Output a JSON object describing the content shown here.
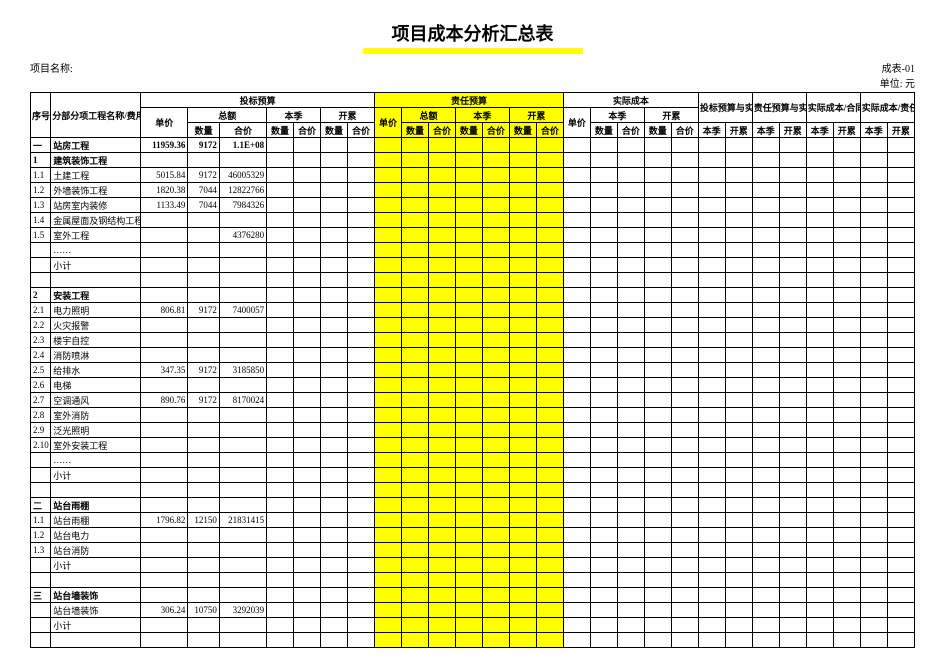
{
  "title": "项目成本分析汇总表",
  "sheet_code": "成表-01",
  "project_label": "项目名称:",
  "unit_label": "单位: 元",
  "colors": {
    "highlight": "#ffff00",
    "border": "#000000",
    "bg": "#ffffff"
  },
  "header": {
    "xh": "序号",
    "name": "分部分项工程名称/费用名称",
    "g1": "投标预算",
    "g2": "责任预算",
    "g3": "实际成本",
    "g4": "投标预算与实际成本差额",
    "g5": "责任预算与实际成本差额",
    "g6": "实际成本/合同收入 节超率（%）",
    "g7": "实际成本/责任预算 节超率（%）",
    "dj": "单价",
    "zj": "总额",
    "bj": "本季",
    "kl": "开累",
    "sl": "数量",
    "hj": "合价"
  },
  "rows": [
    {
      "xh": "一",
      "name": "站房工程",
      "dj": "11959.36",
      "sl": "9172",
      "hj": "1.1E+08",
      "bold": true
    },
    {
      "xh": "1",
      "name": "建筑装饰工程",
      "bold": true
    },
    {
      "xh": "1.1",
      "name": "土建工程",
      "dj": "5015.84",
      "sl": "9172",
      "hj": "46005329"
    },
    {
      "xh": "1.2",
      "name": "外墙装饰工程",
      "dj": "1820.38",
      "sl": "7044",
      "hj": "12822766"
    },
    {
      "xh": "1.3",
      "name": "站房室内装修",
      "dj": "1133.49",
      "sl": "7044",
      "hj": "7984326"
    },
    {
      "xh": "1.4",
      "name": "金属屋面及钢结构工程"
    },
    {
      "xh": "1.5",
      "name": "室外工程",
      "hj": "4376280"
    },
    {
      "xh": "",
      "name": "……"
    },
    {
      "xh": "",
      "name": "小计"
    },
    {
      "xh": "",
      "name": ""
    },
    {
      "xh": "2",
      "name": "安装工程",
      "bold": true
    },
    {
      "xh": "2.1",
      "name": "电力照明",
      "dj": "806.81",
      "sl": "9172",
      "hj": "7400057"
    },
    {
      "xh": "2.2",
      "name": "火灾报警"
    },
    {
      "xh": "2.3",
      "name": "楼宇自控"
    },
    {
      "xh": "2.4",
      "name": "消防喷淋"
    },
    {
      "xh": "2.5",
      "name": "给排水",
      "dj": "347.35",
      "sl": "9172",
      "hj": "3185850"
    },
    {
      "xh": "2.6",
      "name": "电梯"
    },
    {
      "xh": "2.7",
      "name": "空调通风",
      "dj": "890.76",
      "sl": "9172",
      "hj": "8170024"
    },
    {
      "xh": "2.8",
      "name": "室外消防"
    },
    {
      "xh": "2.9",
      "name": "泛光照明"
    },
    {
      "xh": "2.10",
      "name": "室外安装工程"
    },
    {
      "xh": "",
      "name": "……"
    },
    {
      "xh": "",
      "name": "小计"
    },
    {
      "xh": "",
      "name": ""
    },
    {
      "xh": "二",
      "name": "站台雨棚",
      "bold": true
    },
    {
      "xh": "1.1",
      "name": "站台雨棚",
      "dj": "1796.82",
      "sl": "12150",
      "hj": "21831415"
    },
    {
      "xh": "1.2",
      "name": "站台电力"
    },
    {
      "xh": "1.3",
      "name": "站台消防"
    },
    {
      "xh": "",
      "name": "小计"
    },
    {
      "xh": "",
      "name": ""
    },
    {
      "xh": "三",
      "name": "站台墙装饰",
      "bold": true
    },
    {
      "xh": "",
      "name": "站台墙装饰",
      "dj": "306.24",
      "sl": "10750",
      "hj": "3292039"
    },
    {
      "xh": "",
      "name": "小计"
    },
    {
      "xh": "",
      "name": ""
    }
  ]
}
